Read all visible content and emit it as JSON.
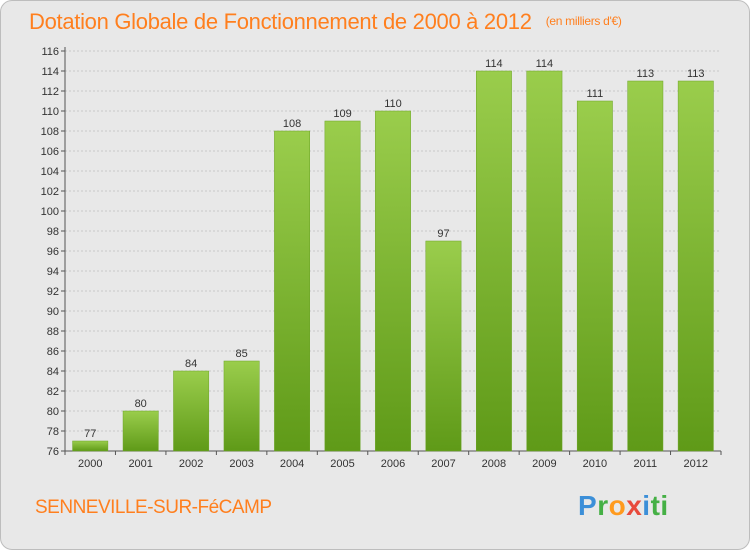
{
  "header": {
    "title": "Dotation Globale de Fonctionnement de 2000 à 2012",
    "unit": "(en milliers d'€)"
  },
  "footer": {
    "commune": "SENNEVILLE-SUR-FéCAMP",
    "logo_letters": [
      "P",
      "r",
      "o",
      "x",
      "i",
      "ti"
    ]
  },
  "colors": {
    "bar_light": "#9acd4c",
    "bar_dark": "#5f9a18",
    "grid": "#c8c8c8",
    "accent": "#ff7f1e"
  },
  "chart_data": {
    "type": "bar",
    "categories": [
      "2000",
      "2001",
      "2002",
      "2003",
      "2004",
      "2005",
      "2006",
      "2007",
      "2008",
      "2009",
      "2010",
      "2011",
      "2012"
    ],
    "values": [
      77,
      80,
      84,
      85,
      108,
      109,
      110,
      97,
      114,
      114,
      111,
      113,
      113
    ],
    "data_labels": [
      "77",
      "80",
      "84",
      "85",
      "108",
      "109",
      "110",
      "97",
      "114",
      "114",
      "111",
      "113",
      "113"
    ],
    "title": "Dotation Globale de Fonctionnement de 2000 à 2012",
    "ylim": [
      76,
      116
    ],
    "yticks": [
      "76",
      "78",
      "80",
      "82",
      "84",
      "86",
      "88",
      "90",
      "92",
      "94",
      "96",
      "98",
      "100",
      "102",
      "104",
      "106",
      "108",
      "110",
      "112",
      "114",
      "116"
    ],
    "grid": true,
    "legend": "none"
  }
}
